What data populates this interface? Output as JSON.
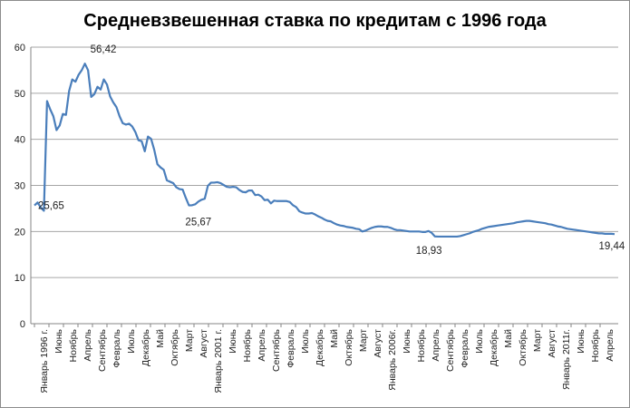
{
  "chart_data": {
    "type": "line",
    "title": "Средневзвешенная ставка по кредитам с 1996 года",
    "xlabel": "",
    "ylabel": "",
    "ylim": [
      0,
      60
    ],
    "yticks": [
      "0",
      "10",
      "20",
      "30",
      "40",
      "50",
      "60"
    ],
    "grid": true,
    "legend": "none",
    "line_color": "#4a7ebb",
    "grid_color": "#a6a6a6",
    "x_labels": [
      "Январь 1996 г.",
      "Июнь",
      "Ноябрь",
      "Апрель",
      "Сентябрь",
      "Февраль",
      "Июль",
      "Декабрь",
      "Май",
      "Октябрь",
      "Март",
      "Август",
      "Январь 2001 г.",
      "Июнь",
      "Ноябрь",
      "Апрель",
      "Сентябрь",
      "Февраль",
      "Июль",
      "Декабрь",
      "Май",
      "Октябрь",
      "Март",
      "Август",
      "Январь 2006г.",
      "Июнь",
      "Ноябрь",
      "Апрель",
      "Сентябрь",
      "Февраль",
      "Июль",
      "Декабрь",
      "Май",
      "Октябрь",
      "Март",
      "Август",
      "Январь 2011г.",
      "Июнь",
      "Ноябрь",
      "Апрель"
    ],
    "series": [
      {
        "values": [
          25.65,
          26.3,
          25.2,
          24.5,
          48.3,
          46.5,
          45,
          42,
          43,
          45.5,
          45.3,
          50.5,
          53,
          52.5,
          54,
          55,
          56.42,
          55,
          49.2,
          49.8,
          51.4,
          50.8,
          53,
          51.9,
          49.3,
          48,
          47,
          45,
          43.5,
          43.2,
          43.4,
          42.8,
          41.6,
          39.8,
          39.6,
          37.4,
          40.6,
          40.1,
          37.7,
          34.6,
          33.9,
          33.4,
          31.1,
          30.8,
          30.5,
          29.6,
          29.2,
          29.1,
          27.3,
          25.67,
          25.7,
          25.9,
          26.5,
          26.9,
          27.1,
          29.9,
          30.6,
          30.6,
          30.7,
          30.5,
          30.1,
          29.7,
          29.6,
          29.7,
          29.6,
          29.0,
          28.6,
          28.5,
          28.9,
          28.9,
          27.9,
          28.0,
          27.6,
          26.8,
          26.9,
          26.1,
          26.7,
          26.6,
          26.6,
          26.6,
          26.6,
          26.4,
          25.7,
          25.3,
          24.4,
          24.1,
          23.9,
          23.9,
          24.0,
          23.7,
          23.3,
          23.0,
          22.6,
          22.3,
          22.2,
          21.8,
          21.5,
          21.3,
          21.2,
          21.0,
          20.9,
          20.8,
          20.6,
          20.5,
          20.0,
          20.2,
          20.5,
          20.8,
          21.0,
          21.1,
          21.1,
          21.0,
          21.0,
          20.8,
          20.5,
          20.3,
          20.3,
          20.2,
          20.1,
          20.0,
          20.0,
          20.0,
          20.0,
          19.9,
          19.9,
          20.1,
          19.7,
          18.93,
          18.9,
          18.9,
          18.9,
          18.9,
          18.9,
          18.9,
          18.9,
          19.0,
          19.2,
          19.4,
          19.6,
          19.9,
          20.1,
          20.3,
          20.6,
          20.8,
          21.0,
          21.1,
          21.2,
          21.3,
          21.4,
          21.5,
          21.6,
          21.7,
          21.8,
          22.0,
          22.1,
          22.2,
          22.3,
          22.3,
          22.2,
          22.1,
          22.0,
          21.9,
          21.8,
          21.6,
          21.5,
          21.3,
          21.1,
          21.0,
          20.8,
          20.6,
          20.5,
          20.4,
          20.3,
          20.2,
          20.1,
          20.0,
          19.9,
          19.8,
          19.7,
          19.6,
          19.6,
          19.5,
          19.5,
          19.5,
          19.44
        ]
      }
    ],
    "annotations": [
      {
        "index": 0,
        "value": 25.65,
        "text": "25,65"
      },
      {
        "index": 16,
        "value": 56.42,
        "text": "56,42"
      },
      {
        "index": 49,
        "value": 25.67,
        "text": "25,67"
      },
      {
        "index": 125,
        "value": 18.93,
        "text": "18,93"
      },
      {
        "index": 183,
        "value": 19.44,
        "text": "19,44"
      }
    ]
  }
}
